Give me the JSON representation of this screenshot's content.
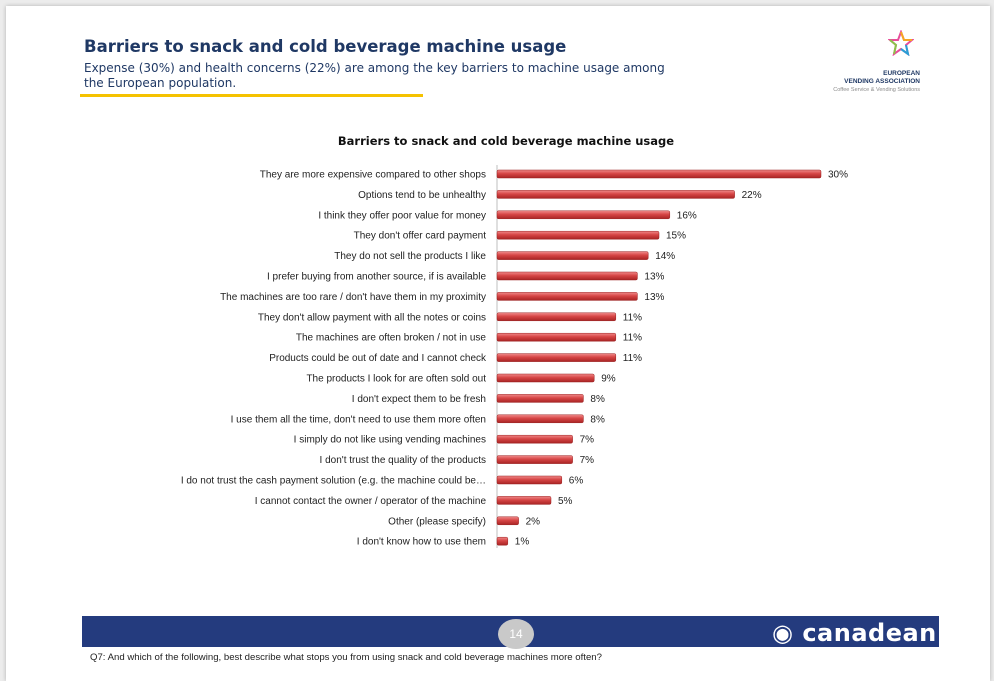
{
  "header": {
    "title": "Barriers to snack and cold beverage machine usage",
    "subtitle": "Expense (30%) and health concerns (22%) are among the key barriers to machine usage among the European population."
  },
  "logo": {
    "line1": "EUROPEAN",
    "line2": "VENDING ASSOCIATION",
    "line3": "Coffee Service & Vending Solutions"
  },
  "footer": {
    "page_number": "14",
    "brand": "canadean",
    "question": "Q7: And which of the following, best describe what stops you from using snack and cold beverage machines more often?"
  },
  "colors": {
    "bar": "#c83a3a",
    "title": "#1f3864",
    "rule": "#f5c200",
    "footer": "#243b7e"
  },
  "chart_data": {
    "type": "bar",
    "orientation": "horizontal",
    "title": "Barriers to snack and cold beverage machine usage",
    "categories": [
      "They are more expensive compared to other shops",
      "Options tend to be unhealthy",
      "I think they offer poor value for money",
      "They don't offer card payment",
      "They do not sell the products I like",
      "I prefer buying from another source, if is available",
      "The machines are too rare / don't have them in my proximity",
      "They don't allow payment with all the notes or coins",
      "The machines are often broken / not in use",
      "Products could be out of date and I cannot check",
      "The products I look for are often sold out",
      "I don't expect them to be fresh",
      "I use them all the time, don't need to use them more often",
      "I simply do not like using vending machines",
      "I don't trust the quality of the products",
      "I do not trust the cash payment solution (e.g. the machine could be…",
      "I cannot contact the owner / operator of the machine",
      "Other (please specify)",
      "I don't know how to use them"
    ],
    "values": [
      30,
      22,
      16,
      15,
      14,
      13,
      13,
      11,
      11,
      11,
      9,
      8,
      8,
      7,
      7,
      6,
      5,
      2,
      1
    ],
    "value_labels": [
      "30%",
      "22%",
      "16%",
      "15%",
      "14%",
      "13%",
      "13%",
      "11%",
      "11%",
      "11%",
      "9%",
      "8%",
      "8%",
      "7%",
      "7%",
      "6%",
      "5%",
      "2%",
      "1%"
    ],
    "unit": "%",
    "xlim": [
      0,
      30
    ],
    "grid": false,
    "legend": "none"
  }
}
